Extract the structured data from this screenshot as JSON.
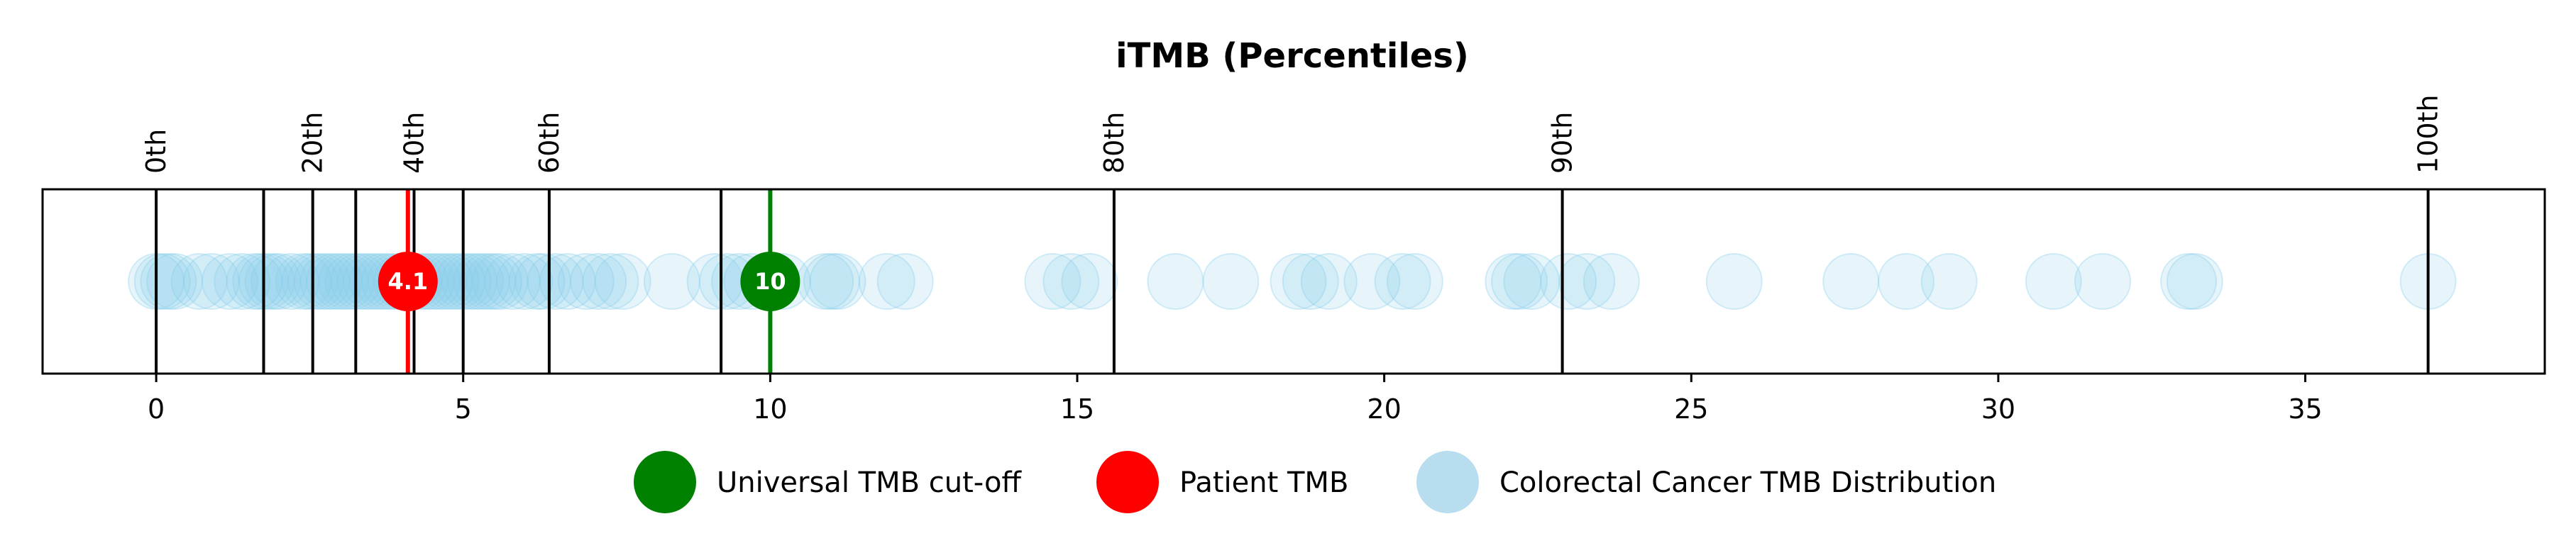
{
  "chart_data": {
    "type": "scatter",
    "title": "iTMB (Percentiles)",
    "xlim": [
      -1.85,
      38.9
    ],
    "xticks": [
      0,
      5,
      10,
      15,
      20,
      25,
      30,
      35
    ],
    "percentile_lines": [
      {
        "value": 0,
        "label": "0th"
      },
      {
        "value": 1.75,
        "label": ""
      },
      {
        "value": 2.55,
        "label": "20th"
      },
      {
        "value": 3.25,
        "label": ""
      },
      {
        "value": 4.2,
        "label": "40th"
      },
      {
        "value": 5.0,
        "label": ""
      },
      {
        "value": 6.4,
        "label": "60th"
      },
      {
        "value": 9.2,
        "label": ""
      },
      {
        "value": 15.6,
        "label": "80th"
      },
      {
        "value": 22.9,
        "label": "90th"
      },
      {
        "value": 37.0,
        "label": "100th"
      }
    ],
    "series": [
      {
        "name": "Colorectal Cancer TMB Distribution",
        "color": "#87CEEB",
        "values": [
          0,
          0.1,
          0.2,
          0.3,
          0.7,
          0.9,
          1.2,
          1.4,
          1.6,
          1.7,
          1.8,
          1.9,
          2.0,
          2.2,
          2.4,
          2.5,
          2.6,
          2.7,
          2.8,
          2.9,
          3.0,
          3.1,
          3.2,
          3.3,
          3.4,
          3.5,
          3.6,
          3.7,
          3.8,
          3.9,
          4.0,
          4.1,
          4.2,
          4.3,
          4.4,
          4.5,
          4.6,
          4.7,
          4.8,
          4.9,
          5.0,
          5.1,
          5.2,
          5.3,
          5.4,
          5.5,
          5.6,
          5.8,
          6.0,
          6.2,
          6.3,
          6.5,
          6.7,
          7.0,
          7.2,
          7.4,
          7.6,
          8.4,
          9.1,
          9.3,
          9.5,
          9.7,
          10.2,
          10.9,
          11.0,
          11.1,
          11.9,
          12.2,
          14.6,
          14.9,
          15.2,
          16.6,
          17.5,
          18.6,
          18.8,
          19.1,
          19.8,
          20.3,
          20.5,
          22.1,
          22.2,
          22.4,
          23.0,
          23.3,
          23.7,
          25.7,
          27.6,
          28.5,
          29.2,
          30.9,
          31.7,
          33.1,
          33.2,
          37.0
        ]
      },
      {
        "name": "Patient TMB",
        "color": "#FF0000",
        "value": 4.1,
        "label": "4.1"
      },
      {
        "name": "Universal TMB cut-off",
        "color": "#008000",
        "value": 10,
        "label": "10"
      }
    ],
    "legend": {
      "placement": "bottom",
      "entries": [
        {
          "label": "Universal TMB cut-off",
          "color": "#008000"
        },
        {
          "label": "Patient TMB",
          "color": "#FF0000"
        },
        {
          "label": "Colorectal Cancer TMB Distribution",
          "color": "#B7DDEF"
        }
      ]
    },
    "grid": false
  }
}
